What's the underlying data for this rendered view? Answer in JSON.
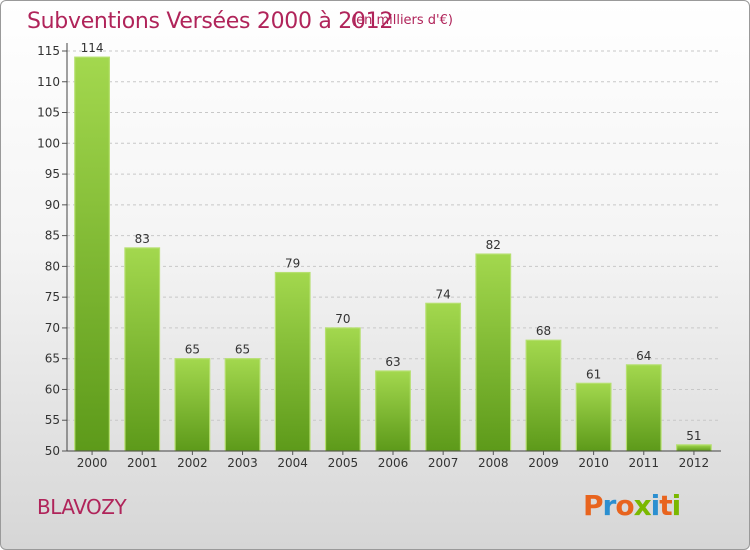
{
  "header": {
    "title": "Subventions Versées 2000 à 2012",
    "unit": "(en milliers d'€)"
  },
  "footer": {
    "commune": "BLAVOZY",
    "logo_letters": [
      "P",
      "r",
      "o",
      "x",
      "i",
      "t",
      "i"
    ],
    "logo_colors": [
      "#e8641e",
      "#2b8fd0",
      "#e8641e",
      "#7ab800",
      "#2b8fd0",
      "#e8641e",
      "#7ab800"
    ]
  },
  "chart_data": {
    "type": "bar",
    "categories": [
      "2000",
      "2001",
      "2002",
      "2003",
      "2004",
      "2005",
      "2006",
      "2007",
      "2008",
      "2009",
      "2010",
      "2011",
      "2012"
    ],
    "values": [
      114,
      83,
      65,
      65,
      79,
      70,
      63,
      74,
      82,
      68,
      61,
      64,
      51
    ],
    "data_labels": [
      "114",
      "83",
      "65",
      "65",
      "79",
      "70",
      "63",
      "74",
      "82",
      "68",
      "61",
      "64",
      "51"
    ],
    "yticks": [
      "50",
      "55",
      "60",
      "65",
      "70",
      "75",
      "80",
      "85",
      "90",
      "95",
      "100",
      "105",
      "110",
      "115"
    ],
    "ylim": [
      50,
      115
    ],
    "grid": true,
    "bar_color": "#7cc030",
    "bar_color_light": "#a3d84e",
    "bar_color_dark": "#5d9a1a"
  }
}
